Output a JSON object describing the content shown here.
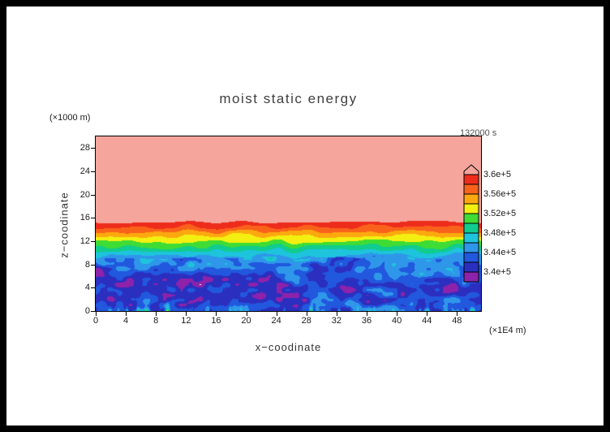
{
  "window": {
    "frame_color": "#000000",
    "paper_color": "#ffffff"
  },
  "chart_data": {
    "type": "heatmap",
    "title": "moist static energy",
    "time_label": "132000 s",
    "x_axis": {
      "label": "x−coodinate",
      "unit_label": "(×1E4 m)",
      "ticks": [
        0,
        4,
        8,
        12,
        16,
        20,
        24,
        28,
        32,
        36,
        40,
        44,
        48
      ],
      "range": [
        0,
        51.2
      ]
    },
    "y_axis": {
      "label": "z−coodinate",
      "unit_label": "(×1000 m)",
      "ticks": [
        0,
        4,
        8,
        12,
        16,
        20,
        24,
        28
      ],
      "range": [
        0,
        30
      ]
    },
    "colorbar": {
      "value_scale": 100000,
      "levels": [
        3.38,
        3.4,
        3.42,
        3.44,
        3.46,
        3.48,
        3.5,
        3.52,
        3.54,
        3.56,
        3.58,
        3.6
      ],
      "colors_low_to_high": [
        "#ffffff",
        "#8e22aa",
        "#2b2fc0",
        "#2158de",
        "#2f97ea",
        "#1ec3dc",
        "#10cc8e",
        "#3edc35",
        "#f3f011",
        "#fca90f",
        "#f9621a",
        "#ee2c1c",
        "#f5a59c"
      ],
      "tick_labels": [
        "3.6e+5",
        "3.56e+5",
        "3.52e+5",
        "3.48e+5",
        "3.44e+5",
        "3.4e+5"
      ],
      "tick_values": [
        3.6,
        3.56,
        3.52,
        3.48,
        3.44,
        3.4
      ]
    },
    "field_model": {
      "description": "Uniform high moist static energy (pink, >3.6e5) above a sharp inversion near z=15.5 km; stratified transition bands (red/orange/yellow/green/teal/cyan) between ~9.5 and 15.5 km; turbulent boundary layer below ~9.5 km of blue/dark-blue eddies with purple low-energy swirls, white patches below the scale minimum, and warm yellow-orange plumes at the surface.",
      "upper_value": 3.62,
      "inversion_top_km": 15.3,
      "inversion_wiggle": 0.3,
      "mixed_layer_top_km": 9.2,
      "mixed_layer_wiggle": 0.8,
      "transition_min": 3.452,
      "transition_max": 3.598,
      "bl_mean": 3.425,
      "bl_noise_amp1": 0.034,
      "bl_noise_amp2": 0.018,
      "bl_vertical_gradient": 0.022,
      "bl_core_dip": 0.012,
      "surface_plume_amp": 0.14
    }
  }
}
